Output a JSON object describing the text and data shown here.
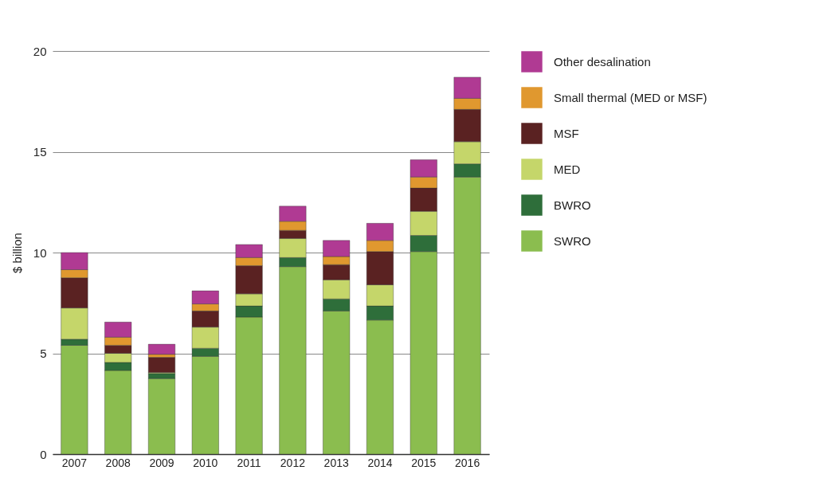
{
  "chart_data": {
    "type": "bar",
    "stacked": true,
    "ylabel": "$ billion",
    "categories": [
      "2007",
      "2008",
      "2009",
      "2010",
      "2011",
      "2012",
      "2013",
      "2014",
      "2015",
      "2016"
    ],
    "series": [
      {
        "name": "SWRO",
        "color": "#8bbd4f",
        "values": [
          5.4,
          4.15,
          3.75,
          4.85,
          6.8,
          9.3,
          7.1,
          6.65,
          10.05,
          13.75
        ]
      },
      {
        "name": "BWRO",
        "color": "#2e6e3a",
        "values": [
          0.3,
          0.4,
          0.25,
          0.4,
          0.55,
          0.45,
          0.6,
          0.7,
          0.8,
          0.65
        ]
      },
      {
        "name": "MED",
        "color": "#c5d66a",
        "values": [
          1.55,
          0.45,
          0.05,
          1.05,
          0.6,
          0.95,
          0.95,
          1.05,
          1.2,
          1.1
        ]
      },
      {
        "name": "MSF",
        "color": "#5a2222",
        "values": [
          1.5,
          0.4,
          0.75,
          0.8,
          1.4,
          0.4,
          0.75,
          1.65,
          1.15,
          1.6
        ]
      },
      {
        "name": "Small thermal (MED or MSF)",
        "color": "#e0982f",
        "values": [
          0.4,
          0.4,
          0.15,
          0.35,
          0.4,
          0.45,
          0.4,
          0.55,
          0.55,
          0.55
        ]
      },
      {
        "name": "Other desalination",
        "color": "#b03a93",
        "values": [
          0.85,
          0.75,
          0.5,
          0.65,
          0.65,
          0.75,
          0.8,
          0.85,
          0.85,
          1.05
        ]
      }
    ],
    "ylim": [
      0,
      20
    ],
    "yticks": [
      0,
      5,
      10,
      15,
      20
    ],
    "grid": "y",
    "legend": "top right"
  }
}
